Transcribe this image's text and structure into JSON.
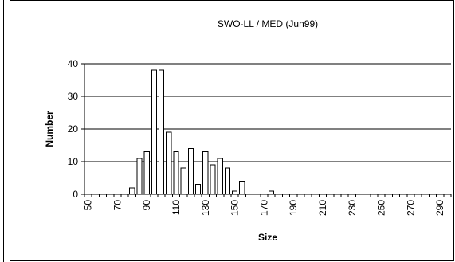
{
  "chart_data": {
    "type": "bar",
    "title": "SWO-LL / MED (Jun99)",
    "xlabel": "Size",
    "ylabel": "Number",
    "ylim": [
      0,
      40
    ],
    "yticks": [
      0,
      10,
      20,
      30,
      40
    ],
    "xlim": [
      50,
      300
    ],
    "bin_width": 5,
    "x_tick_labels": [
      "50",
      "70",
      "90",
      "110",
      "130",
      "150",
      "170",
      "190",
      "210",
      "230",
      "250",
      "270",
      "290"
    ],
    "x": [
      80,
      85,
      90,
      95,
      100,
      105,
      110,
      115,
      120,
      125,
      130,
      135,
      140,
      145,
      150,
      155,
      175
    ],
    "values": [
      2,
      11,
      13,
      38,
      38,
      19,
      13,
      8,
      14,
      3,
      13,
      9,
      11,
      8,
      1,
      4,
      1
    ],
    "grid": "horizontal",
    "legend": "none",
    "colors": {
      "bar_fill": "#ffffff",
      "bar_stroke": "#000000",
      "grid": "#000000"
    }
  }
}
